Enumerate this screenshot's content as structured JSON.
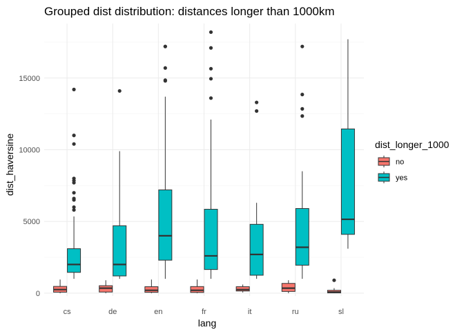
{
  "chart_data": {
    "type": "boxplot",
    "title": "Grouped dist distribution: distances longer than 1000km",
    "xlabel": "lang",
    "ylabel": "dist_haversine",
    "categories": [
      "cs",
      "de",
      "en",
      "fr",
      "it",
      "ru",
      "sl"
    ],
    "ylim": [
      -200,
      18800
    ],
    "yticks": [
      0,
      5000,
      10000,
      15000
    ],
    "ytick_labels": [
      "0",
      "5000",
      "10000",
      "15000"
    ],
    "grid": true,
    "legend": {
      "title": "dist_longer_1000",
      "position": "right",
      "entries": [
        {
          "label": "no",
          "color": "#F8766D"
        },
        {
          "label": "yes",
          "color": "#00BFC4"
        }
      ]
    },
    "series": [
      {
        "name": "no",
        "color": "#F8766D",
        "boxes": [
          {
            "category": "cs",
            "min": 0,
            "q1": 70,
            "median": 250,
            "q3": 470,
            "max": 950,
            "outliers": []
          },
          {
            "category": "de",
            "min": 0,
            "q1": 80,
            "median": 350,
            "q3": 520,
            "max": 900,
            "outliers": []
          },
          {
            "category": "en",
            "min": 0,
            "q1": 60,
            "median": 200,
            "q3": 450,
            "max": 950,
            "outliers": []
          },
          {
            "category": "fr",
            "min": 0,
            "q1": 50,
            "median": 200,
            "q3": 460,
            "max": 950,
            "outliers": []
          },
          {
            "category": "it",
            "min": 50,
            "q1": 150,
            "median": 250,
            "q3": 450,
            "max": 600,
            "outliers": []
          },
          {
            "category": "ru",
            "min": 0,
            "q1": 120,
            "median": 350,
            "q3": 680,
            "max": 900,
            "outliers": []
          },
          {
            "category": "sl",
            "min": 0,
            "q1": 20,
            "median": 80,
            "q3": 200,
            "max": 350,
            "outliers": [
              900
            ]
          }
        ]
      },
      {
        "name": "yes",
        "color": "#00BFC4",
        "boxes": [
          {
            "category": "cs",
            "min": 1000,
            "q1": 1450,
            "median": 2000,
            "q3": 3100,
            "max": 5350,
            "outliers": [
              5800,
              6000,
              6500,
              6600,
              7000,
              7700,
              7850,
              8000,
              10400,
              11000,
              14200
            ]
          },
          {
            "category": "de",
            "min": 1000,
            "q1": 1200,
            "median": 2000,
            "q3": 4700,
            "max": 9900,
            "outliers": [
              14100
            ]
          },
          {
            "category": "en",
            "min": 1000,
            "q1": 2300,
            "median": 4000,
            "q3": 7200,
            "max": 13700,
            "outliers": [
              14800,
              14850,
              15700,
              17200,
              17200
            ]
          },
          {
            "category": "fr",
            "min": 1000,
            "q1": 1650,
            "median": 2600,
            "q3": 5850,
            "max": 12100,
            "outliers": [
              13600,
              14950,
              15650,
              17100,
              18200
            ]
          },
          {
            "category": "it",
            "min": 1000,
            "q1": 1250,
            "median": 2700,
            "q3": 4800,
            "max": 6300,
            "outliers": [
              12700,
              13300
            ]
          },
          {
            "category": "ru",
            "min": 1000,
            "q1": 1950,
            "median": 3200,
            "q3": 5900,
            "max": 8500,
            "outliers": [
              12350,
              12850,
              13850,
              17200
            ]
          },
          {
            "category": "sl",
            "min": 3100,
            "q1": 4100,
            "median": 5150,
            "q3": 11450,
            "max": 17700,
            "outliers": []
          }
        ]
      }
    ]
  }
}
